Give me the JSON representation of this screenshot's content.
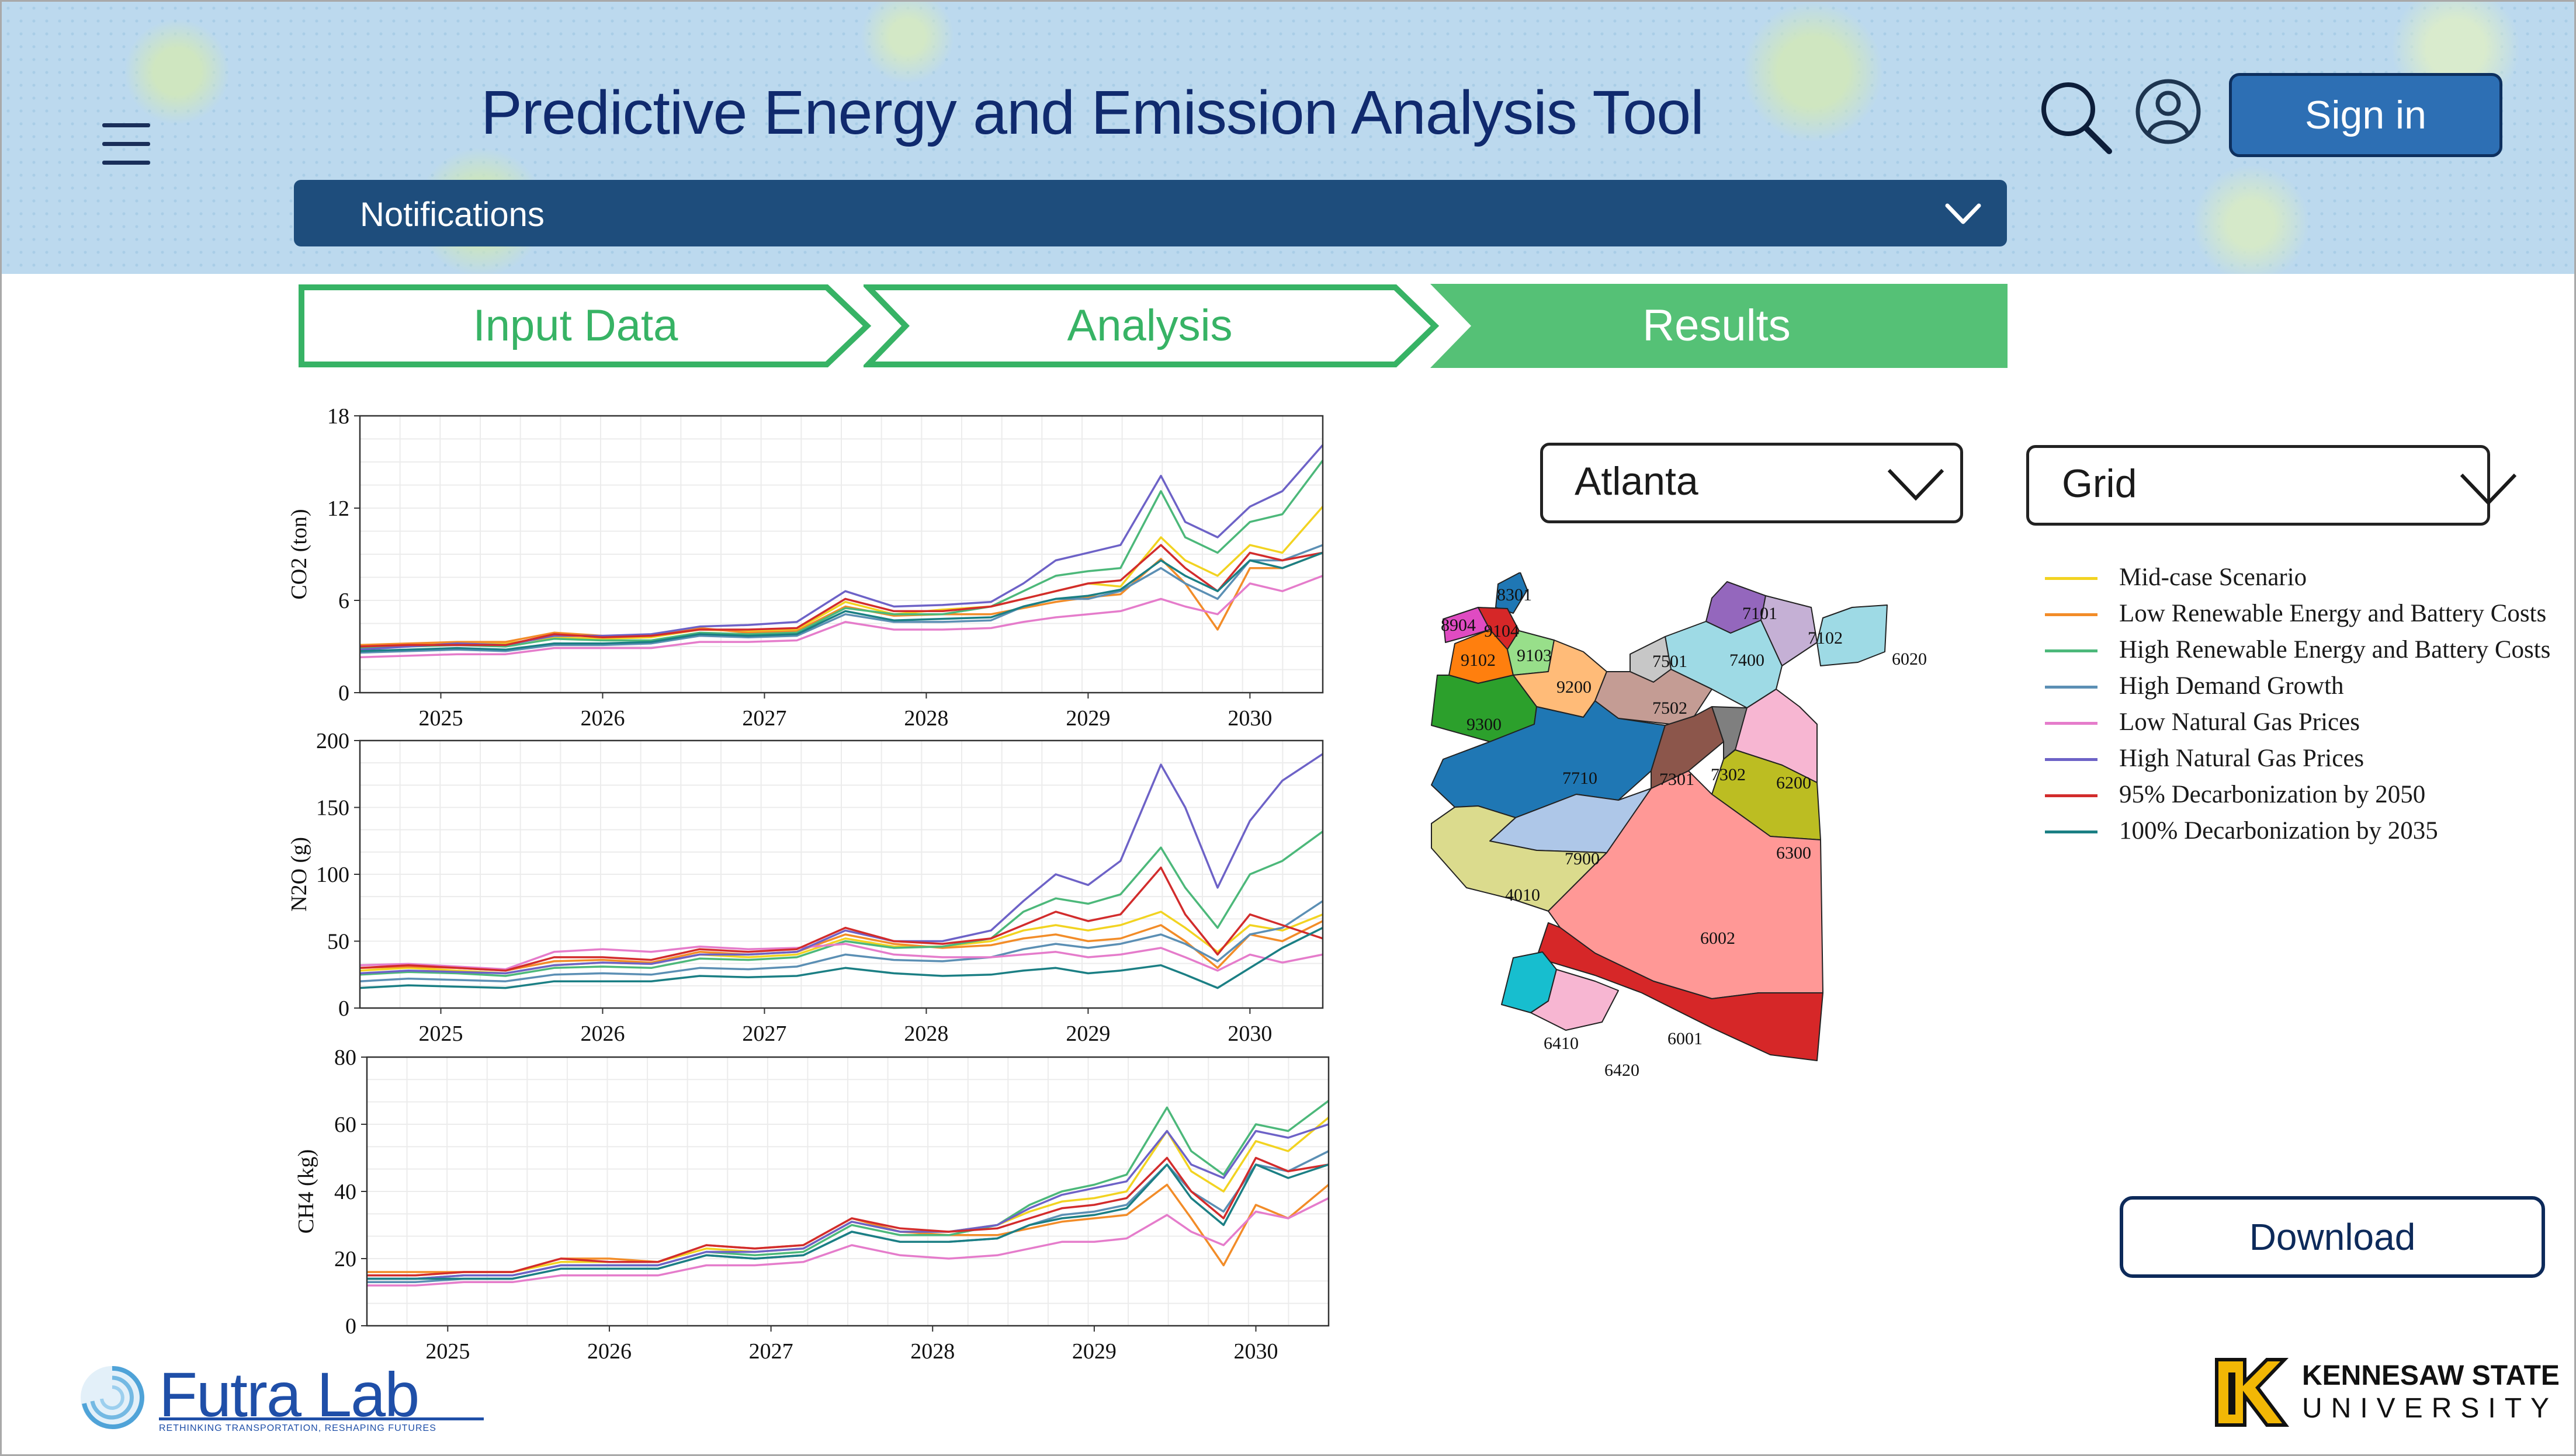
{
  "header": {
    "title": "Predictive Energy and Emission Analysis Tool",
    "sign_in_label": "Sign in",
    "notifications_label": "Notifications"
  },
  "steps": [
    {
      "label": "Input Data",
      "state": "complete"
    },
    {
      "label": "Analysis",
      "state": "complete"
    },
    {
      "label": "Results",
      "state": "active"
    }
  ],
  "filters": {
    "city": "Atlanta",
    "source": "Grid"
  },
  "download_label": "Download",
  "map": {
    "zones": [
      "8301",
      "8904",
      "9104",
      "9102",
      "9103",
      "9200",
      "9300",
      "7101",
      "7102",
      "7400",
      "7501",
      "7502",
      "6020",
      "7710",
      "7301",
      "7302",
      "6200",
      "7900",
      "6300",
      "4010",
      "6002",
      "6001",
      "6410",
      "6420"
    ]
  },
  "colors": {
    "accent_green": "#37b365",
    "navy": "#1e4d7c",
    "button_blue": "#2d6fb4"
  },
  "footer": {
    "futra_name": "Futra Lab",
    "futra_tagline": "RETHINKING TRANSPORTATION, RESHAPING FUTURES",
    "ksu_line1": "KENNESAW STATE",
    "ksu_line2": "UNIVERSITY"
  },
  "chart_data": [
    {
      "type": "line",
      "ylabel": "CO2 (ton)",
      "ylim": [
        0,
        18
      ],
      "yticks": [
        0,
        6,
        12,
        18
      ],
      "xlim": [
        2024.5,
        2030.45
      ],
      "xticks": [
        "2025",
        "2026",
        "2027",
        "2028",
        "2029",
        "2030"
      ],
      "grid": true,
      "x": [
        2024.5,
        2024.8,
        2025.1,
        2025.4,
        2025.7,
        2026.0,
        2026.3,
        2026.6,
        2026.9,
        2027.2,
        2027.5,
        2027.8,
        2028.1,
        2028.4,
        2028.6,
        2028.8,
        2029.0,
        2029.2,
        2029.45,
        2029.6,
        2029.8,
        2030.0,
        2030.2,
        2030.45
      ],
      "series": [
        {
          "name": "Mid-case Scenario",
          "color": "#f2d321",
          "values": [
            3.0,
            3.1,
            3.2,
            3.2,
            3.6,
            3.5,
            3.6,
            4.1,
            4.0,
            4.1,
            5.9,
            5.1,
            5.4,
            5.6,
            6.1,
            6.6,
            7.1,
            6.9,
            10.1,
            8.6,
            7.6,
            9.6,
            9.1,
            12.1
          ]
        },
        {
          "name": "Low Renewable Energy and Battery Costs",
          "color": "#f28c28",
          "values": [
            3.1,
            3.2,
            3.3,
            3.3,
            3.9,
            3.7,
            3.7,
            4.2,
            3.9,
            4.0,
            5.6,
            5.0,
            5.1,
            5.1,
            5.5,
            5.9,
            6.2,
            6.4,
            8.7,
            7.1,
            4.1,
            8.1,
            8.1,
            9.1
          ]
        },
        {
          "name": "High Renewable Energy and Battery Costs",
          "color": "#4cb87a",
          "values": [
            2.9,
            3.0,
            3.1,
            3.0,
            3.5,
            3.4,
            3.4,
            3.9,
            3.8,
            3.9,
            5.5,
            5.1,
            5.1,
            5.6,
            6.6,
            7.6,
            7.9,
            8.1,
            13.1,
            10.1,
            9.1,
            11.1,
            11.6,
            15.1
          ]
        },
        {
          "name": "High Demand Growth",
          "color": "#5b8fb4",
          "values": [
            2.6,
            2.7,
            2.8,
            2.7,
            3.1,
            3.1,
            3.2,
            3.7,
            3.6,
            3.7,
            5.1,
            4.6,
            4.6,
            4.7,
            5.6,
            6.1,
            6.1,
            6.6,
            8.1,
            7.1,
            6.1,
            8.6,
            8.6,
            9.6
          ]
        },
        {
          "name": "Low Natural Gas Prices",
          "color": "#e57ccb",
          "values": [
            2.3,
            2.4,
            2.5,
            2.5,
            2.9,
            2.9,
            2.9,
            3.3,
            3.3,
            3.4,
            4.6,
            4.1,
            4.1,
            4.2,
            4.6,
            4.9,
            5.1,
            5.3,
            6.1,
            5.6,
            5.1,
            7.1,
            6.6,
            7.6
          ]
        },
        {
          "name": "High Natural Gas Prices",
          "color": "#6d62c7",
          "values": [
            2.8,
            3.0,
            3.2,
            3.1,
            3.7,
            3.7,
            3.8,
            4.3,
            4.4,
            4.6,
            6.6,
            5.6,
            5.7,
            5.9,
            7.1,
            8.6,
            9.1,
            9.6,
            14.1,
            11.1,
            10.1,
            12.1,
            13.1,
            16.1
          ]
        },
        {
          "name": "95% Decarbonization by 2050",
          "color": "#d22c2c",
          "values": [
            3.0,
            3.1,
            3.1,
            3.1,
            3.8,
            3.6,
            3.7,
            4.1,
            4.1,
            4.2,
            6.1,
            5.3,
            5.3,
            5.6,
            6.1,
            6.6,
            7.1,
            7.3,
            9.6,
            8.1,
            6.6,
            9.1,
            8.6,
            9.1
          ]
        },
        {
          "name": "100% Decarbonization by 2035",
          "color": "#1b7f84",
          "values": [
            2.7,
            2.8,
            2.9,
            2.8,
            3.2,
            3.2,
            3.3,
            3.8,
            3.7,
            3.8,
            5.3,
            4.7,
            4.8,
            4.9,
            5.6,
            6.1,
            6.3,
            6.7,
            8.6,
            7.6,
            6.6,
            8.6,
            8.1,
            9.1
          ]
        }
      ]
    },
    {
      "type": "line",
      "ylabel": "N2O (g)",
      "ylim": [
        0,
        200
      ],
      "yticks": [
        0,
        50,
        100,
        150,
        200
      ],
      "xlim": [
        2024.5,
        2030.45
      ],
      "xticks": [
        "2025",
        "2026",
        "2027",
        "2028",
        "2029",
        "2030"
      ],
      "grid": true,
      "x": [
        2024.5,
        2024.8,
        2025.1,
        2025.4,
        2025.7,
        2026.0,
        2026.3,
        2026.6,
        2026.9,
        2027.2,
        2027.5,
        2027.8,
        2028.1,
        2028.4,
        2028.6,
        2028.8,
        2029.0,
        2029.2,
        2029.45,
        2029.6,
        2029.8,
        2030.0,
        2030.2,
        2030.45
      ],
      "series": [
        {
          "name": "Mid-case Scenario",
          "color": "#f2d321",
          "values": [
            28,
            30,
            28,
            26,
            32,
            34,
            33,
            40,
            38,
            40,
            52,
            46,
            46,
            50,
            58,
            62,
            58,
            62,
            72,
            60,
            42,
            62,
            58,
            70
          ]
        },
        {
          "name": "Low Renewable Energy and Battery Costs",
          "color": "#f28c28",
          "values": [
            30,
            31,
            30,
            28,
            35,
            36,
            34,
            42,
            40,
            42,
            55,
            48,
            45,
            47,
            52,
            55,
            50,
            52,
            62,
            50,
            30,
            55,
            50,
            65
          ]
        },
        {
          "name": "High Renewable Energy and Battery Costs",
          "color": "#4cb87a",
          "values": [
            25,
            27,
            26,
            24,
            30,
            31,
            30,
            37,
            36,
            38,
            50,
            45,
            46,
            52,
            72,
            82,
            78,
            85,
            120,
            90,
            60,
            100,
            110,
            132
          ]
        },
        {
          "name": "High Demand Growth",
          "color": "#5b8fb4",
          "values": [
            20,
            22,
            21,
            20,
            25,
            26,
            25,
            30,
            29,
            31,
            40,
            36,
            35,
            38,
            44,
            48,
            45,
            48,
            55,
            48,
            35,
            55,
            60,
            80
          ]
        },
        {
          "name": "Low Natural Gas Prices",
          "color": "#e57ccb",
          "values": [
            32,
            33,
            31,
            29,
            42,
            44,
            42,
            46,
            44,
            45,
            48,
            40,
            38,
            38,
            40,
            42,
            38,
            40,
            45,
            38,
            28,
            40,
            34,
            40
          ]
        },
        {
          "name": "High Natural Gas Prices",
          "color": "#6d62c7",
          "values": [
            26,
            28,
            27,
            26,
            32,
            34,
            33,
            40,
            40,
            42,
            58,
            50,
            50,
            58,
            80,
            100,
            92,
            110,
            182,
            150,
            90,
            140,
            170,
            190
          ]
        },
        {
          "name": "95% Decarbonization by 2050",
          "color": "#d22c2c",
          "values": [
            30,
            32,
            30,
            28,
            38,
            38,
            36,
            44,
            42,
            44,
            60,
            50,
            48,
            52,
            62,
            72,
            65,
            70,
            105,
            70,
            40,
            70,
            62,
            52
          ]
        },
        {
          "name": "100% Decarbonization by 2035",
          "color": "#1b7f84",
          "values": [
            15,
            17,
            16,
            15,
            20,
            20,
            20,
            24,
            23,
            24,
            30,
            26,
            24,
            25,
            28,
            30,
            26,
            28,
            32,
            25,
            15,
            30,
            45,
            60
          ]
        }
      ]
    },
    {
      "type": "line",
      "ylabel": "CH4 (kg)",
      "ylim": [
        0,
        80
      ],
      "yticks": [
        0,
        20,
        40,
        60,
        80
      ],
      "xlim": [
        2024.5,
        2030.45
      ],
      "xticks": [
        "2025",
        "2026",
        "2027",
        "2028",
        "2029",
        "2030"
      ],
      "grid": true,
      "x": [
        2024.5,
        2024.8,
        2025.1,
        2025.4,
        2025.7,
        2026.0,
        2026.3,
        2026.6,
        2026.9,
        2027.2,
        2027.5,
        2027.8,
        2028.1,
        2028.4,
        2028.6,
        2028.8,
        2029.0,
        2029.2,
        2029.45,
        2029.6,
        2029.8,
        2030.0,
        2030.2,
        2030.45
      ],
      "series": [
        {
          "name": "Mid-case Scenario",
          "color": "#f2d321",
          "values": [
            15,
            15,
            16,
            16,
            19,
            19,
            19,
            23,
            22,
            23,
            31,
            28,
            28,
            30,
            34,
            37,
            38,
            40,
            58,
            46,
            40,
            55,
            52,
            62
          ]
        },
        {
          "name": "Low Renewable Energy and Battery Costs",
          "color": "#f28c28",
          "values": [
            16,
            16,
            16,
            16,
            20,
            20,
            19,
            24,
            23,
            24,
            32,
            28,
            27,
            27,
            29,
            31,
            32,
            33,
            42,
            32,
            18,
            36,
            32,
            42
          ]
        },
        {
          "name": "High Renewable Energy and Battery Costs",
          "color": "#4cb87a",
          "values": [
            14,
            14,
            15,
            15,
            18,
            18,
            18,
            22,
            21,
            22,
            30,
            27,
            27,
            30,
            36,
            40,
            42,
            45,
            65,
            52,
            45,
            60,
            58,
            67
          ]
        },
        {
          "name": "High Demand Growth",
          "color": "#5b8fb4",
          "values": [
            13,
            13,
            14,
            14,
            17,
            17,
            17,
            21,
            20,
            21,
            28,
            25,
            25,
            26,
            30,
            33,
            34,
            36,
            48,
            40,
            34,
            48,
            46,
            52
          ]
        },
        {
          "name": "Low Natural Gas Prices",
          "color": "#e57ccb",
          "values": [
            12,
            12,
            13,
            13,
            15,
            15,
            15,
            18,
            18,
            19,
            24,
            21,
            20,
            21,
            23,
            25,
            25,
            26,
            33,
            28,
            24,
            34,
            32,
            38
          ]
        },
        {
          "name": "High Natural Gas Prices",
          "color": "#6d62c7",
          "values": [
            14,
            14,
            15,
            15,
            18,
            18,
            18,
            22,
            22,
            23,
            31,
            28,
            28,
            30,
            35,
            39,
            41,
            43,
            58,
            48,
            44,
            58,
            56,
            60
          ]
        },
        {
          "name": "95% Decarbonization by 2050",
          "color": "#d22c2c",
          "values": [
            15,
            15,
            16,
            16,
            20,
            19,
            19,
            24,
            23,
            24,
            32,
            29,
            28,
            29,
            32,
            35,
            36,
            38,
            50,
            40,
            32,
            50,
            46,
            48
          ]
        },
        {
          "name": "100% Decarbonization by 2035",
          "color": "#1b7f84",
          "values": [
            14,
            14,
            14,
            14,
            17,
            17,
            17,
            21,
            20,
            21,
            28,
            25,
            25,
            26,
            30,
            32,
            33,
            35,
            48,
            38,
            30,
            48,
            44,
            48
          ]
        }
      ]
    }
  ]
}
